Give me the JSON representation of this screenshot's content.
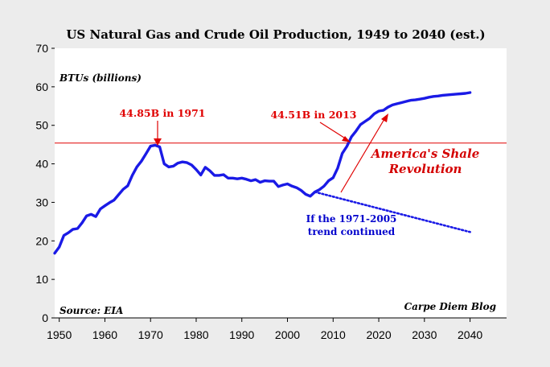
{
  "chart_data": {
    "type": "line",
    "title": "US Natural Gas and Crude Oil Production, 1949 to 2040 (est.)",
    "ylabel": "BTUs (billions)",
    "xlabel": "",
    "xlim": [
      1949,
      2048
    ],
    "ylim": [
      0,
      70
    ],
    "x_ticks": [
      1950,
      1960,
      1970,
      1980,
      1990,
      2000,
      2010,
      2020,
      2030,
      2040
    ],
    "y_ticks": [
      0,
      10,
      20,
      30,
      40,
      50,
      60,
      70
    ],
    "grid": false,
    "series": [
      {
        "style": "solid",
        "color": "#1a1ae6",
        "x": [
          1949,
          1950,
          1951,
          1952,
          1953,
          1954,
          1955,
          1956,
          1957,
          1958,
          1959,
          1960,
          1961,
          1962,
          1963,
          1964,
          1965,
          1966,
          1967,
          1968,
          1969,
          1970,
          1971,
          1972,
          1973,
          1974,
          1975,
          1976,
          1977,
          1978,
          1979,
          1980,
          1981,
          1982,
          1983,
          1984,
          1985,
          1986,
          1987,
          1988,
          1989,
          1990,
          1991,
          1992,
          1993,
          1994,
          1995,
          1996,
          1997,
          1998,
          1999,
          2000,
          2001,
          2002,
          2003,
          2004,
          2005,
          2006,
          2007,
          2008,
          2009,
          2010,
          2011,
          2012,
          2013,
          2014,
          2015,
          2016,
          2017,
          2018,
          2019,
          2020,
          2021,
          2022,
          2023,
          2024,
          2025,
          2026,
          2027,
          2028,
          2029,
          2030,
          2031,
          2032,
          2033,
          2034,
          2035,
          2036,
          2037,
          2038,
          2039,
          2040
        ],
        "values": [
          16.8,
          18.4,
          21.4,
          22.1,
          23.0,
          23.2,
          24.7,
          26.5,
          26.9,
          26.3,
          28.3,
          29.1,
          29.9,
          30.6,
          32.0,
          33.4,
          34.3,
          37.0,
          39.2,
          40.7,
          42.6,
          44.6,
          44.85,
          44.4,
          40.0,
          39.2,
          39.4,
          40.2,
          40.5,
          40.3,
          39.7,
          38.5,
          37.1,
          39.1,
          38.2,
          37.0,
          37.0,
          37.2,
          36.3,
          36.3,
          36.1,
          36.3,
          36.0,
          35.6,
          35.9,
          35.2,
          35.6,
          35.5,
          35.5,
          34.1,
          34.5,
          34.8,
          34.2,
          33.8,
          33.1,
          32.1,
          31.6,
          32.7,
          33.3,
          34.2,
          35.6,
          36.4,
          38.9,
          42.7,
          44.51,
          47.0,
          48.5,
          50.2,
          51.0,
          51.8,
          53.0,
          53.7,
          53.9,
          54.7,
          55.3,
          55.6,
          55.9,
          56.2,
          56.5,
          56.6,
          56.8,
          57.0,
          57.3,
          57.5,
          57.6,
          57.8,
          57.9,
          58.0,
          58.1,
          58.2,
          58.3,
          58.5
        ]
      },
      {
        "style": "dotted",
        "color": "#1a1ae6",
        "x": [
          2006,
          2040
        ],
        "values": [
          32.7,
          22.3
        ]
      }
    ],
    "reference_line": {
      "y": 45.4,
      "color": "#e00000"
    },
    "annotations": [
      {
        "text": "44.85B in 1971",
        "color": "#e00000"
      },
      {
        "text": "44.51B in 2013",
        "color": "#e00000"
      },
      {
        "line1": "America's Shale",
        "line2": "Revolution",
        "color": "#d40000"
      },
      {
        "line1": "If the 1971-2005",
        "line2": "trend continued",
        "color": "#0000cc"
      }
    ],
    "source": "Source: EIA",
    "credit": "Carpe Diem Blog"
  }
}
